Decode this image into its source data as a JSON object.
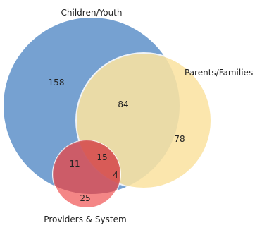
{
  "sets": {
    "children_youth": {
      "label": "Children/Youth",
      "color": "#6f9ccf"
    },
    "parents_families": {
      "label": "Parents/Families",
      "color": "#fbe3a2"
    },
    "providers_system": {
      "label": "Providers & System",
      "color": "#f47c7c"
    }
  },
  "regions": {
    "children_only": "158",
    "children_parents": "84",
    "parents_only": "78",
    "children_providers": "11",
    "all_three": "15",
    "parents_providers": "4",
    "providers_only": "25"
  }
}
